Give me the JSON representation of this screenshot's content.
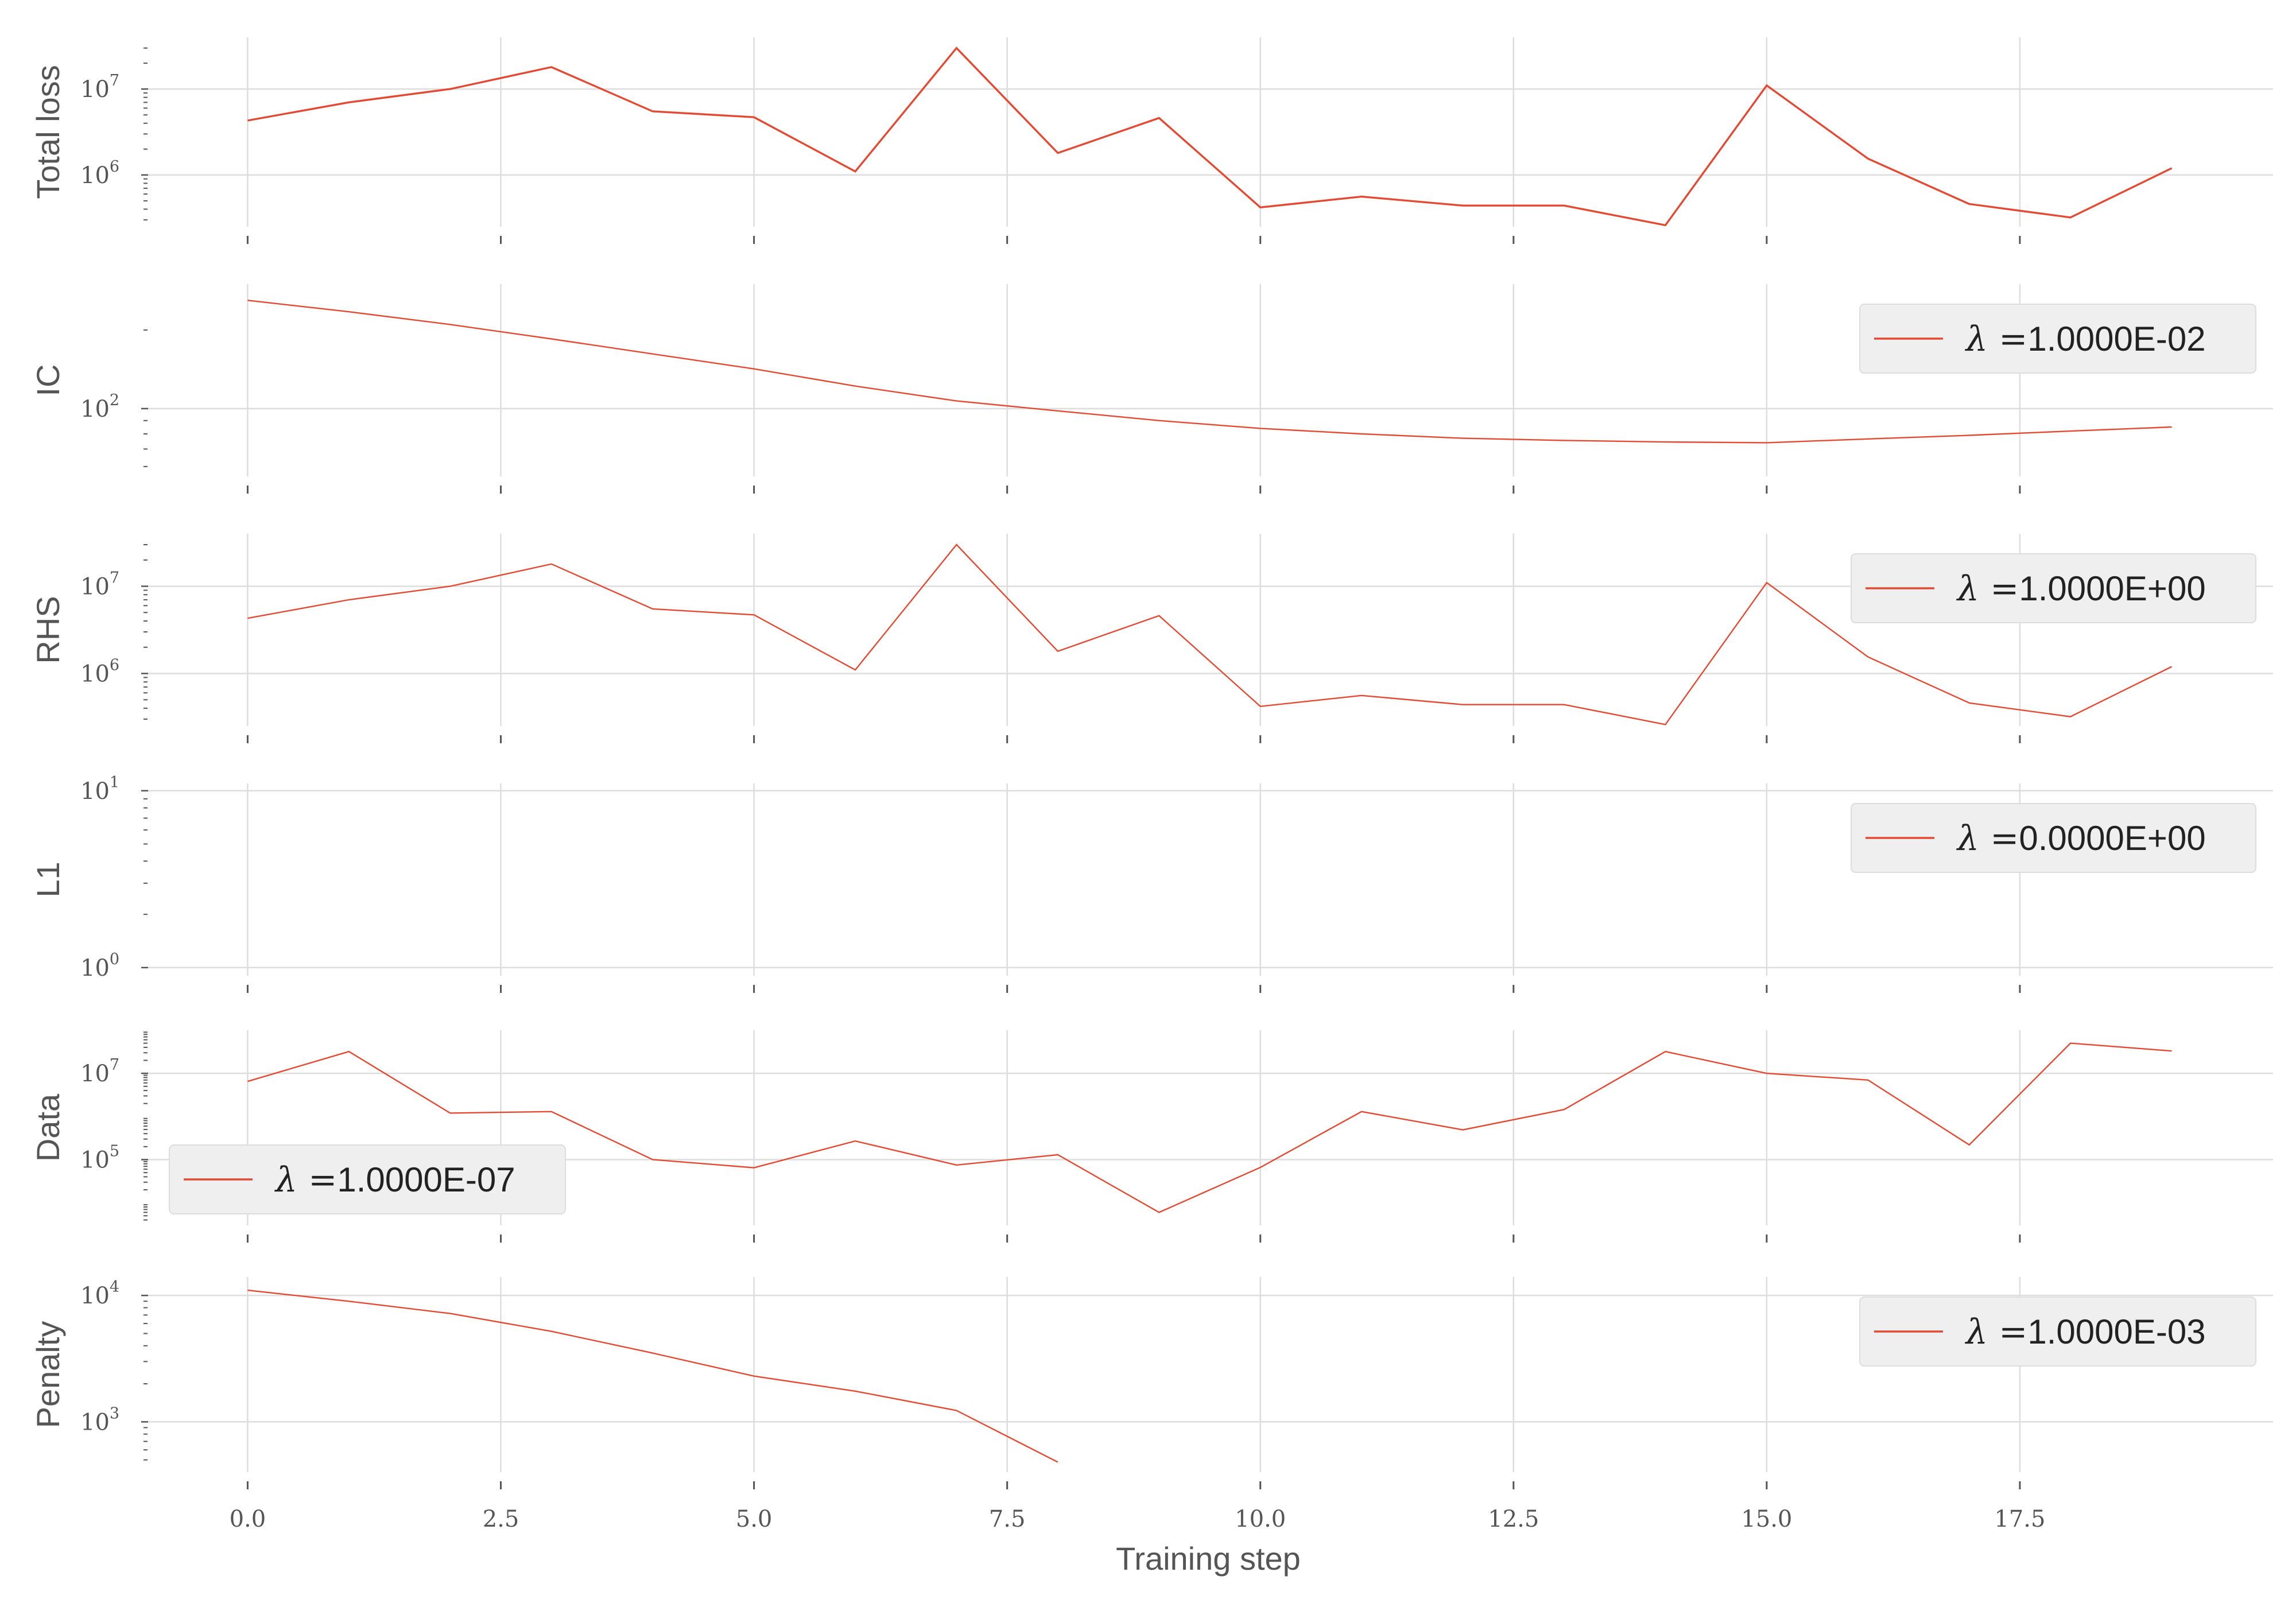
{
  "colors": {
    "series": "#e24a33",
    "grid": "#dddddd",
    "legend_bg": "#efefef"
  },
  "chart_data": {
    "type": "line",
    "xlabel": "Training step",
    "x_ticks": [
      0.0,
      2.5,
      5.0,
      7.5,
      10.0,
      12.5,
      15.0,
      17.5
    ],
    "x_tick_labels": [
      "0.0",
      "2.5",
      "5.0",
      "7.5",
      "10.0",
      "12.5",
      "15.0",
      "17.5"
    ],
    "xlim": [
      -1,
      20
    ],
    "panels": [
      {
        "ylabel": "Total loss",
        "yscale": "log",
        "ylim": [
          250000,
          40000000
        ],
        "y_ticks": [
          {
            "base": "10",
            "exp": "6",
            "value": 1000000
          },
          {
            "base": "10",
            "exp": "7",
            "value": 10000000
          }
        ],
        "x": [
          0,
          1,
          2,
          3,
          4,
          5,
          6,
          7,
          8,
          9,
          10,
          11,
          12,
          13,
          14,
          15,
          16,
          17,
          18,
          19
        ],
        "values": [
          4300000,
          7000000,
          10000000,
          18000000,
          5500000,
          4700000,
          1100000,
          30000000,
          1800000,
          4600000,
          420000,
          560000,
          440000,
          440000,
          260000,
          11000000,
          1550000,
          460000,
          320000,
          1200000
        ],
        "legend": null,
        "line_width": 3.4
      },
      {
        "ylabel": "IC",
        "yscale": "log",
        "ylim": [
          55,
          300
        ],
        "y_ticks": [
          {
            "base": "10",
            "exp": "2",
            "value": 100
          }
        ],
        "x": [
          0,
          1,
          2,
          3,
          4,
          5,
          6,
          7,
          8,
          9,
          10,
          11,
          12,
          13,
          14,
          15,
          16,
          17,
          18,
          19
        ],
        "values": [
          260,
          235,
          210,
          185,
          162,
          142,
          122,
          107,
          98,
          90,
          84,
          80,
          77,
          75.5,
          74.5,
          74,
          76.5,
          79,
          82,
          85
        ],
        "legend": {
          "lambda": "λ =",
          "value": "1.0000E-02",
          "loc": "upper-right"
        },
        "line_width": 2.4
      },
      {
        "ylabel": "RHS",
        "yscale": "log",
        "ylim": [
          250000,
          40000000
        ],
        "y_ticks": [
          {
            "base": "10",
            "exp": "6",
            "value": 1000000
          },
          {
            "base": "10",
            "exp": "7",
            "value": 10000000
          }
        ],
        "x": [
          0,
          1,
          2,
          3,
          4,
          5,
          6,
          7,
          8,
          9,
          10,
          11,
          12,
          13,
          14,
          15,
          16,
          17,
          18,
          19
        ],
        "values": [
          4300000,
          7000000,
          10000000,
          18000000,
          5500000,
          4700000,
          1100000,
          30000000,
          1800000,
          4600000,
          420000,
          560000,
          440000,
          440000,
          260000,
          11000000,
          1550000,
          460000,
          320000,
          1200000
        ],
        "legend": {
          "lambda": "λ =",
          "value": "1.0000E+00",
          "loc": "upper-right"
        },
        "line_width": 2.4
      },
      {
        "ylabel": "L1",
        "yscale": "log",
        "ylim": [
          0.9,
          11
        ],
        "y_ticks": [
          {
            "base": "10",
            "exp": "0",
            "value": 1
          },
          {
            "base": "10",
            "exp": "1",
            "value": 10
          }
        ],
        "x": [],
        "values": [],
        "legend": {
          "lambda": "λ =",
          "value": "0.0000E+00",
          "loc": "upper-right"
        },
        "line_width": 2.4
      },
      {
        "ylabel": "Data",
        "yscale": "log",
        "ylim": [
          3000,
          100000000
        ],
        "y_ticks": [
          {
            "base": "10",
            "exp": "5",
            "value": 100000
          },
          {
            "base": "10",
            "exp": "7",
            "value": 10000000
          }
        ],
        "x": [
          0,
          1,
          2,
          3,
          4,
          5,
          6,
          7,
          8,
          9,
          10,
          11,
          12,
          13,
          14,
          15,
          16,
          17,
          18,
          19
        ],
        "values": [
          6500000,
          32000000,
          1200000,
          1300000,
          100000,
          65000,
          270000,
          75000,
          130000,
          6000,
          66000,
          1300000,
          490000,
          1450000,
          32000000,
          10000000,
          7000000,
          220000,
          50000000,
          33000000
        ],
        "legend": {
          "lambda": "λ =",
          "value": "1.0000E-07",
          "loc": "lower-left"
        },
        "line_width": 2.4
      },
      {
        "ylabel": "Penalty",
        "yscale": "log",
        "ylim": [
          400,
          14000
        ],
        "y_ticks": [
          {
            "base": "10",
            "exp": "3",
            "value": 1000
          },
          {
            "base": "10",
            "exp": "4",
            "value": 10000
          }
        ],
        "x": [
          0,
          1,
          2,
          3,
          4,
          5,
          6,
          7,
          8
        ],
        "values": [
          11000,
          9000,
          7200,
          5200,
          3500,
          2300,
          1750,
          1230,
          480
        ],
        "legend": {
          "lambda": "λ =",
          "value": "1.0000E-03",
          "loc": "upper-right"
        },
        "line_width": 2.4
      }
    ]
  }
}
